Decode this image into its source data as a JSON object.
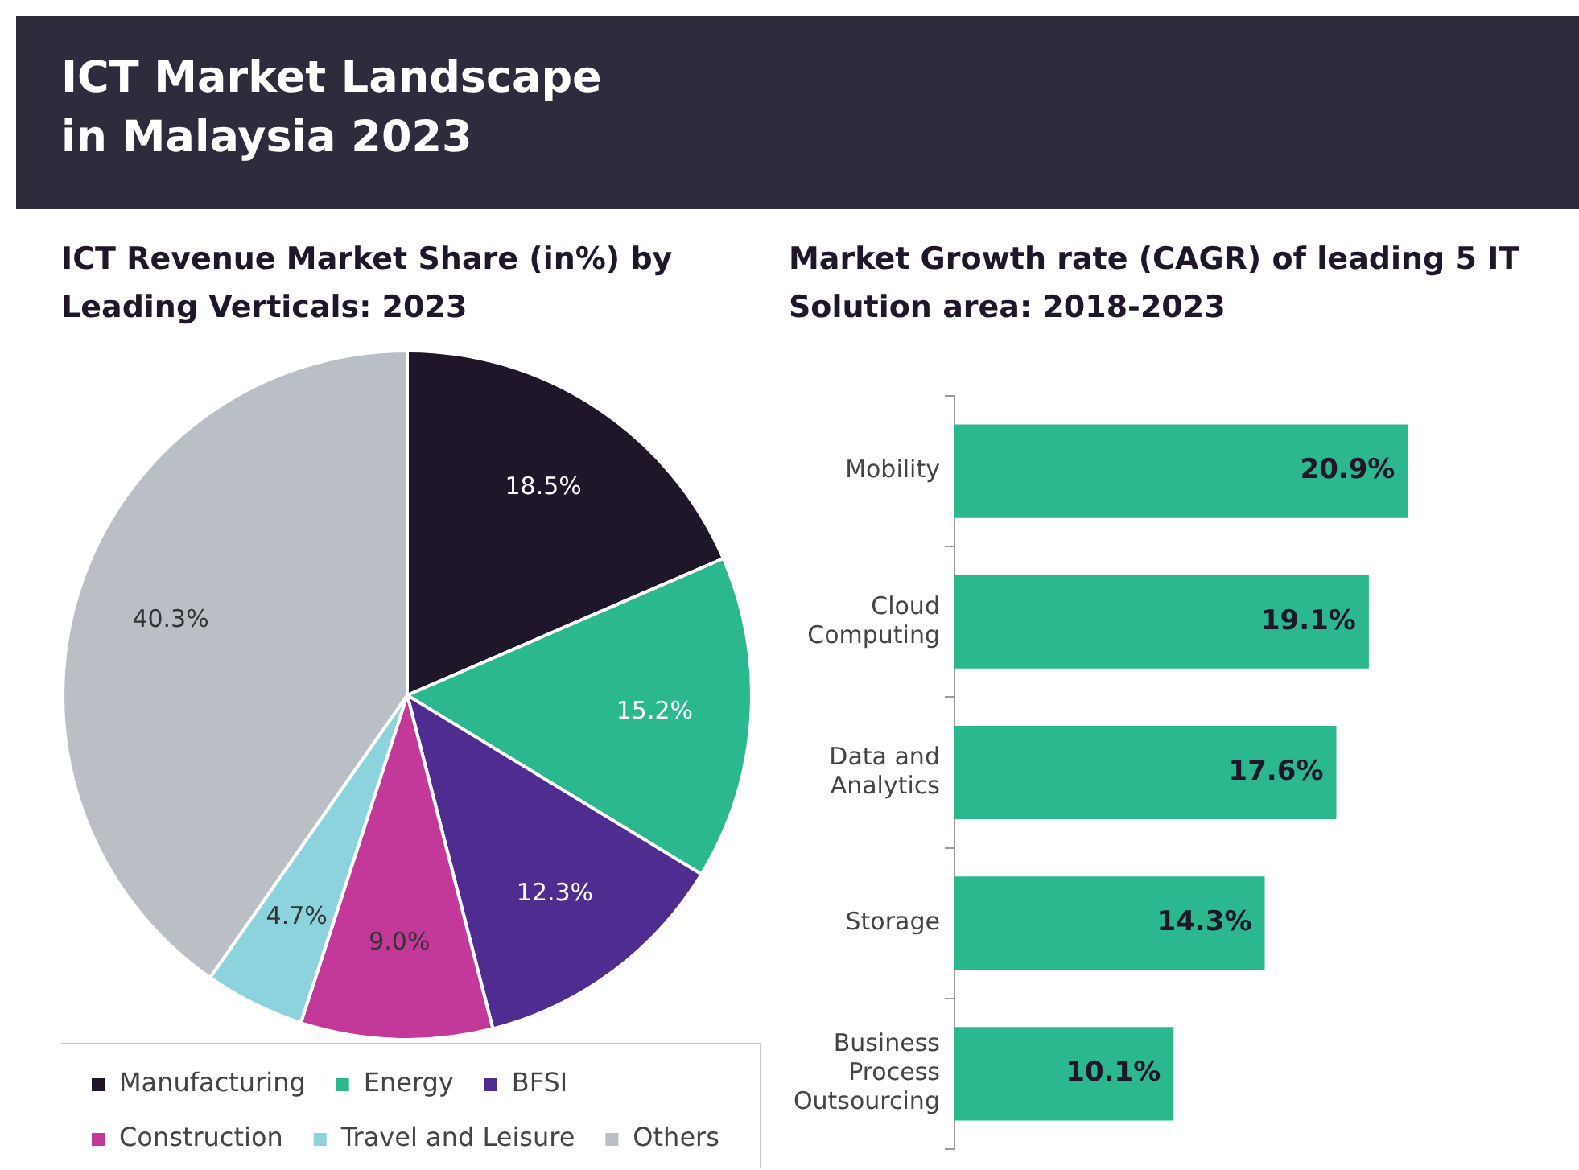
{
  "chart_data": [
    {
      "type": "other",
      "title": "ICT Market Landscape in Malaysia 2023"
    },
    {
      "type": "pie",
      "title": "ICT Revenue Market Share (in%) by Leading Verticals: 2023",
      "categories": [
        "Manufacturing",
        "Energy",
        "BFSI",
        "Construction",
        "Travel and Leisure",
        "Others"
      ],
      "values": [
        18.5,
        15.2,
        12.3,
        9.0,
        4.7,
        40.3
      ],
      "value_labels": [
        "18.5%",
        "15.2%",
        "12.3%",
        "9.0%",
        "4.7%",
        "40.3%"
      ],
      "colors": [
        "#1f1729",
        "#2cb88e",
        "#4f2c8f",
        "#c2399a",
        "#8dd3de",
        "#b9bfc4"
      ],
      "legend": "bottom"
    },
    {
      "type": "bar",
      "orientation": "horizontal",
      "title": "Market Growth rate (CAGR) of leading 5 IT Solution area: 2018-2023",
      "categories": [
        "Mobility",
        "Cloud Computing",
        "Data and Analytics",
        "Storage",
        "Business Process Outsourcing"
      ],
      "values": [
        20.9,
        19.1,
        17.6,
        14.3,
        10.1
      ],
      "value_labels": [
        "20.9%",
        "19.1%",
        "17.6%",
        "14.3%",
        "10.1%"
      ],
      "color": "#2cb88e"
    }
  ]
}
